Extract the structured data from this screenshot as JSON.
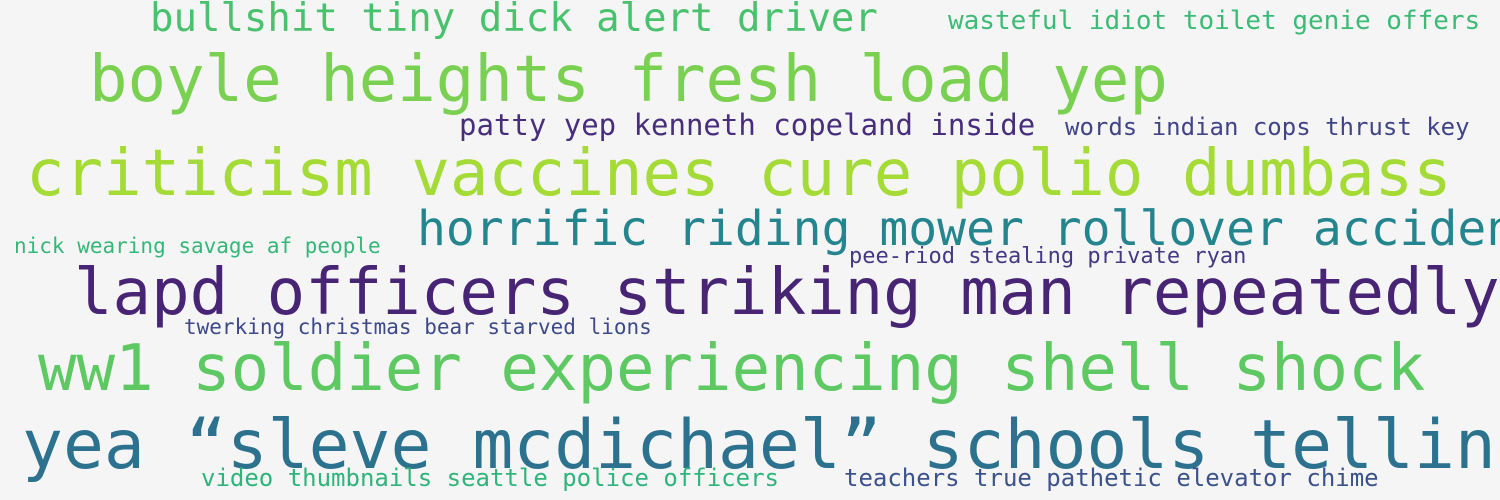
{
  "background": "#f5f5f5",
  "phrases": [
    {
      "text": "bullshit tiny dick alert driver",
      "color": "#4ac16d"
    },
    {
      "text": "wasteful idiot toilet genie offers",
      "color": "#3bbb75"
    },
    {
      "text": "boyle heights fresh load yep",
      "color": "#7ad151"
    },
    {
      "text": "patty yep kenneth copeland inside",
      "color": "#472d7b"
    },
    {
      "text": "words indian cops thrust key",
      "color": "#414487"
    },
    {
      "text": "criticism vaccines cure polio dumbass",
      "color": "#a5db36"
    },
    {
      "text": "horrific riding mower rollover accident",
      "color": "#25858e"
    },
    {
      "text": "nick wearing savage af people",
      "color": "#35b779"
    },
    {
      "text": "pee-riod stealing private ryan",
      "color": "#443983"
    },
    {
      "text": "lapd officers striking man repeatedly",
      "color": "#482475"
    },
    {
      "text": "twerking christmas bear starved lions",
      "color": "#3e4989"
    },
    {
      "text": "ww1 soldier experiencing shell shock",
      "color": "#5ec962"
    },
    {
      "text": "yea “sleve mcdichael” schools telling",
      "color": "#2c728e"
    },
    {
      "text": "video thumbnails seattle police officers",
      "color": "#2fb47c"
    },
    {
      "text": "teachers true pathetic elevator chime",
      "color": "#3b528b"
    }
  ]
}
